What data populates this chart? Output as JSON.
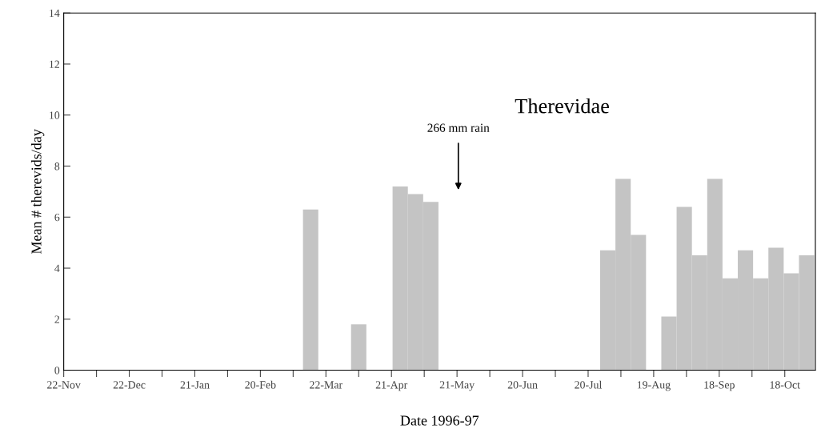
{
  "chart_data": {
    "type": "bar",
    "title": "Therevidae",
    "xlabel": "Date 1996-97",
    "ylabel": "Mean # therevids/day",
    "x": [
      "1997-03-15",
      "1997-04-06",
      "1997-04-25",
      "1997-05-02",
      "1997-05-09",
      "1997-07-29",
      "1997-08-05",
      "1997-08-12",
      "1997-08-26",
      "1997-09-02",
      "1997-09-09",
      "1997-09-16",
      "1997-09-23",
      "1997-09-30",
      "1997-10-07",
      "1997-10-14",
      "1997-10-21",
      "1997-10-28"
    ],
    "values": [
      6.3,
      1.8,
      7.2,
      6.9,
      6.6,
      4.7,
      7.5,
      5.3,
      2.1,
      6.4,
      4.5,
      7.5,
      3.6,
      4.7,
      3.6,
      4.8,
      3.8,
      4.5
    ],
    "color": "#c4c4c4",
    "xlim": [
      "1996-11-22",
      "1997-11-01"
    ],
    "xticks": [
      {
        "value": "1996-11-22",
        "label": "22-Nov"
      },
      {
        "value": "1996-12-07",
        "label": null
      },
      {
        "value": "1996-12-22",
        "label": "22-Dec"
      },
      {
        "value": "1997-01-06",
        "label": null
      },
      {
        "value": "1997-01-21",
        "label": "21-Jan"
      },
      {
        "value": "1997-02-05",
        "label": null
      },
      {
        "value": "1997-02-20",
        "label": "20-Feb"
      },
      {
        "value": "1997-03-07",
        "label": null
      },
      {
        "value": "1997-03-22",
        "label": "22-Mar"
      },
      {
        "value": "1997-04-06",
        "label": null
      },
      {
        "value": "1997-04-21",
        "label": "21-Apr"
      },
      {
        "value": "1997-05-06",
        "label": null
      },
      {
        "value": "1997-05-21",
        "label": "21-May"
      },
      {
        "value": "1997-06-05",
        "label": null
      },
      {
        "value": "1997-06-20",
        "label": "20-Jun"
      },
      {
        "value": "1997-07-05",
        "label": null
      },
      {
        "value": "1997-07-20",
        "label": "20-Jul"
      },
      {
        "value": "1997-08-04",
        "label": null
      },
      {
        "value": "1997-08-19",
        "label": "19-Aug"
      },
      {
        "value": "1997-09-03",
        "label": null
      },
      {
        "value": "1997-09-18",
        "label": "18-Sep"
      },
      {
        "value": "1997-10-03",
        "label": null
      },
      {
        "value": "1997-10-18",
        "label": "18-Oct"
      }
    ],
    "ylim": [
      0,
      14
    ],
    "yticks": [
      0,
      2,
      4,
      6,
      8,
      10,
      12,
      14
    ],
    "annotations": [
      "266 mm rain"
    ],
    "grid": false,
    "legend": false
  }
}
